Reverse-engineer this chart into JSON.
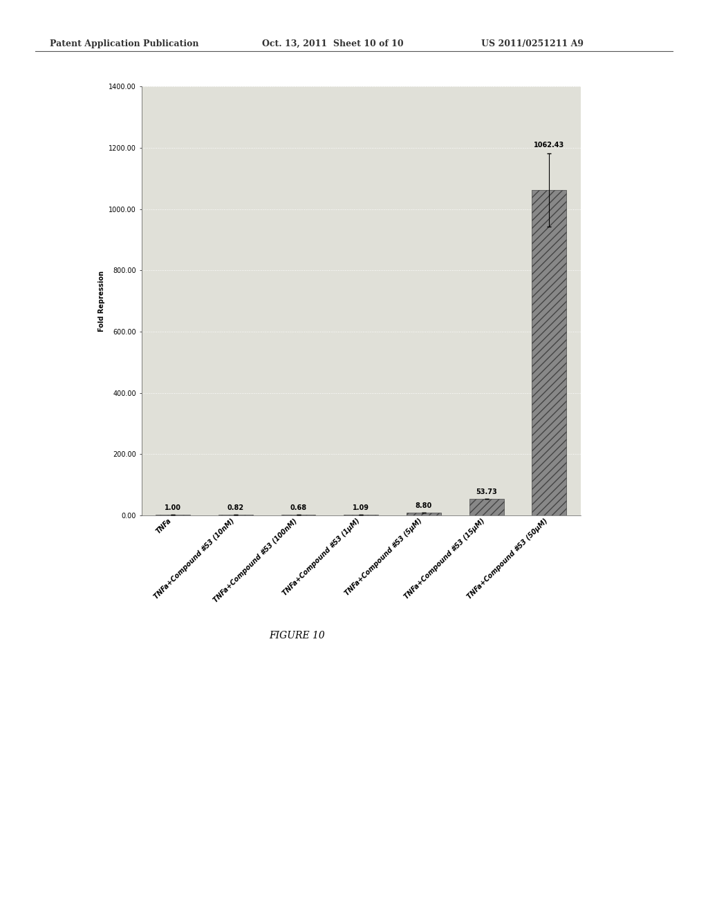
{
  "categories": [
    "TNFa",
    "TNFa+Compound #53 (10nM)",
    "TNFa+Compound #53 (100nM)",
    "TNFa+Compound #53 (1μM)",
    "TNFa+Compound #53 (5μM)",
    "TNFa+Compound #53 (15μM)",
    "TNFa+Compound #53 (50μM)"
  ],
  "values": [
    1.0,
    0.82,
    0.68,
    1.09,
    8.8,
    53.73,
    1062.43
  ],
  "error_bars": [
    0.0,
    0.0,
    0.0,
    0.0,
    0.0,
    0.0,
    120.0
  ],
  "bar_color": "#888888",
  "bar_hatch": "///",
  "ylabel": "Fold Repression",
  "ylim": [
    0,
    1400
  ],
  "yticks": [
    0,
    200,
    400,
    600,
    800,
    1000,
    1200,
    1400
  ],
  "ytick_labels": [
    "0.00",
    "200.00",
    "400.00",
    "600.00",
    "800.00",
    "1000.00",
    "1200.00",
    "1400.00"
  ],
  "value_labels": [
    "1.00",
    "0.82",
    "0.68",
    "1.09",
    "8.80",
    "53.73",
    "1062.43"
  ],
  "figure_caption": "FIGURE 10",
  "header_left": "Patent Application Publication",
  "header_center": "Oct. 13, 2011  Sheet 10 of 10",
  "header_right": "US 2011/0251211 A9",
  "background_color": "#ffffff",
  "plot_bg_color": "#e0e0d8",
  "grid_color": "#ffffff",
  "bar_edge_color": "#444444",
  "font_size_axis": 7,
  "font_size_ticks": 7,
  "font_size_header": 9,
  "font_size_caption": 10,
  "font_size_values": 7
}
